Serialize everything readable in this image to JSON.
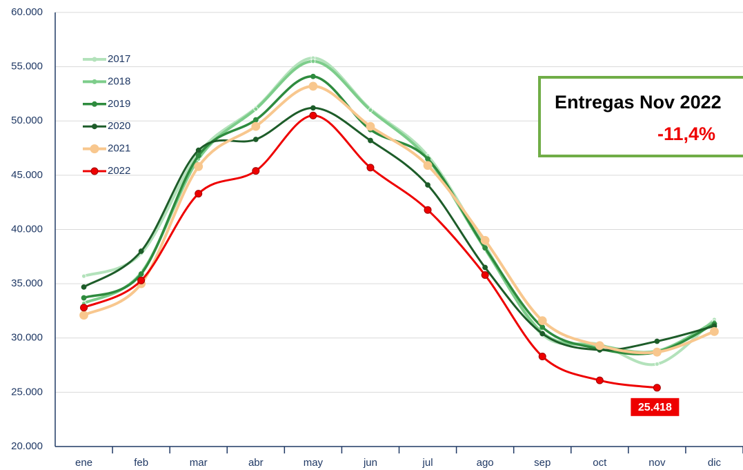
{
  "chart_data": {
    "type": "line",
    "categories": [
      "ene",
      "feb",
      "mar",
      "abr",
      "may",
      "jun",
      "jul",
      "ago",
      "sep",
      "oct",
      "nov",
      "dic"
    ],
    "series": [
      {
        "name": "2017",
        "color": "#b3e2bb",
        "values": [
          35700,
          37800,
          47000,
          51200,
          55800,
          51100,
          46800,
          38500,
          30300,
          29400,
          27600,
          31700
        ]
      },
      {
        "name": "2018",
        "color": "#7dcd8b",
        "values": [
          33200,
          36000,
          46500,
          51100,
          55500,
          51000,
          46500,
          38200,
          30500,
          29300,
          28800,
          31500
        ]
      },
      {
        "name": "2019",
        "color": "#2e8b3e",
        "values": [
          33700,
          35900,
          46800,
          50100,
          54100,
          49200,
          46500,
          38300,
          31000,
          29000,
          28700,
          31300
        ]
      },
      {
        "name": "2020",
        "color": "#1d5c29",
        "values": [
          34700,
          38000,
          47300,
          48300,
          51200,
          48200,
          44100,
          36500,
          30400,
          28900,
          29700,
          31100
        ]
      },
      {
        "name": "2021",
        "color": "#f8c78e",
        "values": [
          32100,
          35000,
          45800,
          49500,
          53200,
          49500,
          45900,
          39000,
          31600,
          29300,
          28700,
          30600
        ]
      },
      {
        "name": "2022",
        "color": "#ee0000",
        "values": [
          32800,
          35300,
          43300,
          45400,
          50500,
          45700,
          41800,
          35800,
          28300,
          26100,
          25418,
          null
        ],
        "value_labels": [
          null,
          null,
          null,
          null,
          null,
          null,
          null,
          null,
          null,
          null,
          "25.418",
          null
        ]
      }
    ],
    "ylim": [
      20000,
      60000
    ],
    "yticks": [
      {
        "value": 20000,
        "label": "20.000"
      },
      {
        "value": 25000,
        "label": "25.000"
      },
      {
        "value": 30000,
        "label": "30.000"
      },
      {
        "value": 35000,
        "label": "35.000"
      },
      {
        "value": 40000,
        "label": "40.000"
      },
      {
        "value": 45000,
        "label": "45.000"
      },
      {
        "value": 50000,
        "label": "50.000"
      },
      {
        "value": 55000,
        "label": "55.000"
      },
      {
        "value": 60000,
        "label": "60.000"
      }
    ],
    "grid": true,
    "legend": "left",
    "annotation": {
      "title": "Entregas Nov 2022",
      "text": "-11,4%"
    }
  }
}
